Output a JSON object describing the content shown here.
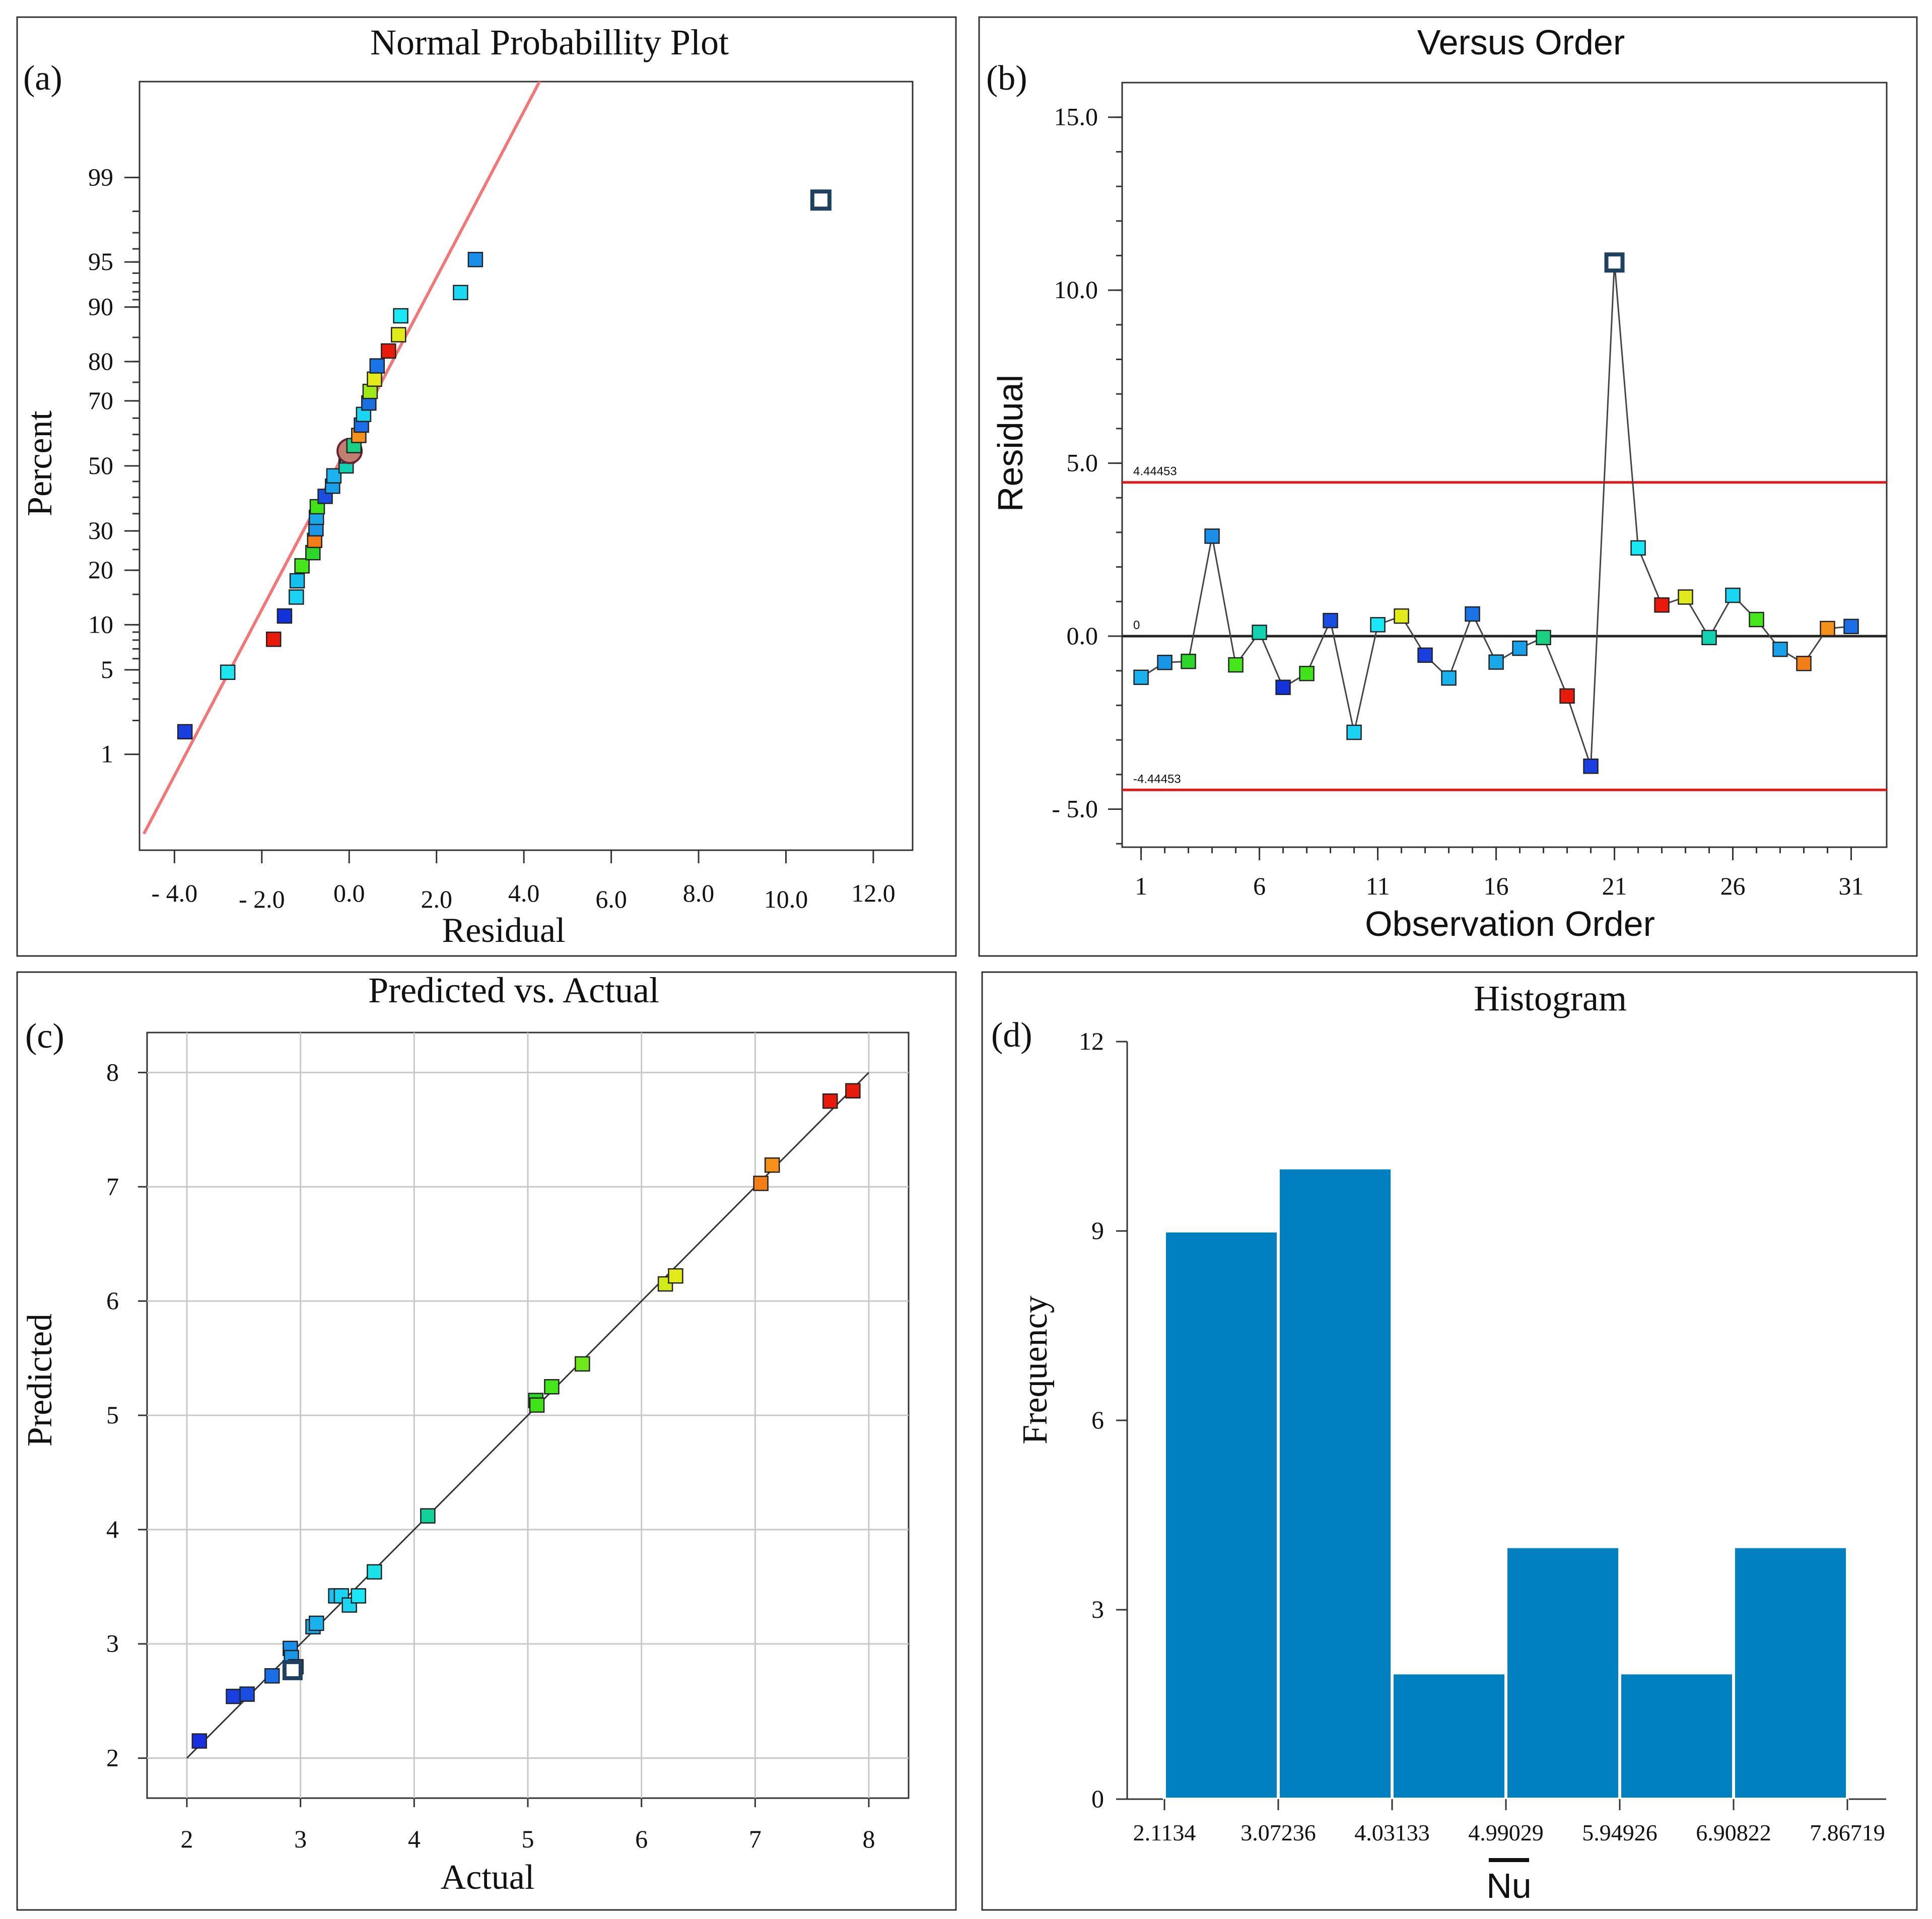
{
  "figure": {
    "panels": [
      {
        "id": "a",
        "label": "(a)",
        "title": "Normal Probabillity Plot",
        "xlabel": "Residual",
        "ylabel": "Percent"
      },
      {
        "id": "b",
        "label": "(b)",
        "title": "Versus Order",
        "xlabel": "Observation Order",
        "ylabel": "Residual"
      },
      {
        "id": "c",
        "label": "(c)",
        "title": "Predicted vs. Actual",
        "xlabel": "Actual",
        "ylabel": "Predicted"
      },
      {
        "id": "d",
        "label": "(d)",
        "title": "Histogram",
        "xlabel": "Nu",
        "ylabel": "Frequency"
      }
    ]
  },
  "chart_data": [
    {
      "id": "a",
      "type": "scatter",
      "title": "Normal Probabillity Plot",
      "xlabel": "Residual",
      "ylabel": "Percent",
      "xlim": [
        -4.8,
        12.9
      ],
      "x_ticks": [
        -4.0,
        -2.0,
        0.0,
        2.0,
        4.0,
        6.0,
        8.0,
        10.0,
        12.0
      ],
      "x_tick_labels": [
        "- 4.0",
        "- 2.0",
        "0.0",
        "2.0",
        "4.0",
        "6.0",
        "8.0",
        "10.0",
        "12.0"
      ],
      "y_ticks": [
        1,
        5,
        10,
        20,
        30,
        50,
        70,
        80,
        90,
        95,
        99
      ],
      "y_tick_labels": [
        "1",
        "5",
        "10",
        "20",
        "30",
        "50",
        "70",
        "80",
        "90",
        "95",
        "99"
      ],
      "fit_line": {
        "x": [
          -4.7,
          4.5
        ],
        "percent": [
          0.15,
          99.93
        ]
      },
      "points": [
        {
          "x": -3.76,
          "p": 1.6,
          "color": "#1a3fe0"
        },
        {
          "x": -2.78,
          "p": 4.8,
          "color": "#1ee5f0"
        },
        {
          "x": -1.73,
          "p": 8.1,
          "color": "#e81a0c"
        },
        {
          "x": -1.48,
          "p": 11.3,
          "color": "#1233d9"
        },
        {
          "x": -1.21,
          "p": 14.5,
          "color": "#1ad2f2"
        },
        {
          "x": -1.19,
          "p": 17.7,
          "color": "#14c0ee"
        },
        {
          "x": -1.08,
          "p": 21.0,
          "color": "#46e61c"
        },
        {
          "x": -0.83,
          "p": 24.2,
          "color": "#2ed52a"
        },
        {
          "x": -0.79,
          "p": 27.4,
          "color": "#f37d17"
        },
        {
          "x": -0.76,
          "p": 30.6,
          "color": "#1c96e6"
        },
        {
          "x": -0.75,
          "p": 33.9,
          "color": "#1aa8e8"
        },
        {
          "x": -0.73,
          "p": 37.1,
          "color": "#40e31a"
        },
        {
          "x": -0.55,
          "p": 40.3,
          "color": "#1a4ee0"
        },
        {
          "x": -0.38,
          "p": 43.5,
          "color": "#1aa0ea"
        },
        {
          "x": -0.35,
          "p": 46.8,
          "color": "#1ab2ee"
        },
        {
          "x": -0.07,
          "p": 50.0,
          "color": "#12d2b2"
        },
        {
          "x": -0.04,
          "p": 53.2,
          "color": "#1ac8e0"
        },
        {
          "x": 0.01,
          "p": 54.8,
          "color": "#7a5080"
        },
        {
          "x": 0.11,
          "p": 56.5,
          "color": "#1ad082"
        },
        {
          "x": 0.22,
          "p": 59.7,
          "color": "#f59018"
        },
        {
          "x": 0.28,
          "p": 62.9,
          "color": "#1a6ee8"
        },
        {
          "x": 0.33,
          "p": 66.1,
          "color": "#1ad6f2"
        },
        {
          "x": 0.45,
          "p": 69.4,
          "color": "#1a70e0"
        },
        {
          "x": 0.48,
          "p": 72.6,
          "color": "#9fe81a"
        },
        {
          "x": 0.58,
          "p": 75.8,
          "color": "#e2ea1a"
        },
        {
          "x": 0.64,
          "p": 79.0,
          "color": "#1a74e8"
        },
        {
          "x": 0.9,
          "p": 82.3,
          "color": "#e81a0c"
        },
        {
          "x": 1.13,
          "p": 85.5,
          "color": "#e0ea1a"
        },
        {
          "x": 1.18,
          "p": 88.7,
          "color": "#1ae8f5"
        },
        {
          "x": 2.55,
          "p": 91.9,
          "color": "#1ad8f2"
        },
        {
          "x": 2.89,
          "p": 95.2,
          "color": "#1a8ee8"
        },
        {
          "x": 10.8,
          "p": 98.4,
          "color": "#ffffff",
          "outlier": true
        }
      ]
    },
    {
      "id": "b",
      "type": "line",
      "title": "Versus Order",
      "xlabel": "Observation Order",
      "ylabel": "Residual",
      "xlim": [
        0.2,
        32.5
      ],
      "ylim": [
        -6.1,
        16.0
      ],
      "x_ticks": [
        1,
        6,
        11,
        16,
        21,
        26,
        31
      ],
      "x_tick_labels": [
        "1",
        "6",
        "11",
        "16",
        "21",
        "26",
        "31"
      ],
      "y_ticks": [
        -5,
        0,
        5,
        10,
        15
      ],
      "y_tick_labels": [
        "- 5.0",
        "0.0",
        "5.0",
        "10.0",
        "15.0"
      ],
      "control_limits": {
        "upper": 4.44453,
        "upper_label": "4.44453",
        "lower": -4.44453,
        "lower_label": "-4.44453",
        "center": 0,
        "center_label": "0"
      },
      "x": [
        1,
        2,
        3,
        4,
        5,
        6,
        7,
        8,
        9,
        10,
        11,
        12,
        13,
        14,
        15,
        16,
        17,
        18,
        19,
        20,
        21,
        22,
        23,
        24,
        25,
        26,
        27,
        28,
        29,
        30,
        31
      ],
      "values": [
        -1.19,
        -0.76,
        -0.73,
        2.89,
        -0.83,
        0.11,
        -1.48,
        -1.08,
        0.45,
        -2.78,
        0.33,
        0.58,
        -0.55,
        -1.21,
        0.64,
        -0.75,
        -0.35,
        -0.04,
        -1.73,
        -3.76,
        10.8,
        2.55,
        0.9,
        1.13,
        -0.04,
        1.18,
        0.48,
        -0.38,
        -0.79,
        0.22,
        0.28
      ],
      "colors": [
        "#1ab2ee",
        "#1a96e6",
        "#2ed52a",
        "#1a8ee8",
        "#46e61c",
        "#12d2b2",
        "#1233d9",
        "#40e31a",
        "#1a4ee0",
        "#1ad2f2",
        "#1ae8f5",
        "#e2ea1a",
        "#1a3fe0",
        "#1ab2ee",
        "#1a74e8",
        "#1aa8e8",
        "#1aa0ea",
        "#1ad082",
        "#e81a0c",
        "#1a3fe0",
        "#ffffff",
        "#1ae8f5",
        "#e81a0c",
        "#e0ea1a",
        "#12d2b2",
        "#1ad6f2",
        "#46e61c",
        "#1aa0ea",
        "#f37d17",
        "#f59018",
        "#1a6ee8"
      ],
      "outlier_index": 20
    },
    {
      "id": "c",
      "type": "scatter",
      "title": "Predicted vs. Actual",
      "xlabel": "Actual",
      "ylabel": "Predicted",
      "xlim": [
        1.65,
        8.35
      ],
      "ylim": [
        1.65,
        8.35
      ],
      "x_ticks": [
        2,
        3,
        4,
        5,
        6,
        7,
        8
      ],
      "y_ticks": [
        2,
        3,
        4,
        5,
        6,
        7,
        8
      ],
      "fit_line": {
        "x": [
          2,
          8
        ],
        "y": [
          2,
          8
        ]
      },
      "points": [
        {
          "x": 2.11,
          "y": 2.15,
          "color": "#1a30e0"
        },
        {
          "x": 2.41,
          "y": 2.54,
          "color": "#1a3fe0"
        },
        {
          "x": 2.53,
          "y": 2.56,
          "color": "#1a4ee0"
        },
        {
          "x": 2.75,
          "y": 2.72,
          "color": "#1a6ee8"
        },
        {
          "x": 2.91,
          "y": 2.96,
          "color": "#1a8ee8"
        },
        {
          "x": 2.92,
          "y": 2.88,
          "color": "#1a96e6"
        },
        {
          "x": 2.96,
          "y": 2.8,
          "color": "#1aa0ea"
        },
        {
          "x": 2.93,
          "y": 2.77,
          "color": "#ffffff",
          "outlier": true
        },
        {
          "x": 3.11,
          "y": 3.15,
          "color": "#1aa8e8"
        },
        {
          "x": 3.14,
          "y": 3.18,
          "color": "#1ab2ee"
        },
        {
          "x": 3.31,
          "y": 3.42,
          "color": "#1ac0ee"
        },
        {
          "x": 3.36,
          "y": 3.42,
          "color": "#1ad2f2"
        },
        {
          "x": 3.43,
          "y": 3.34,
          "color": "#1ad6f2"
        },
        {
          "x": 3.51,
          "y": 3.42,
          "color": "#1ae8f5"
        },
        {
          "x": 3.65,
          "y": 3.63,
          "color": "#1ae0e8"
        },
        {
          "x": 4.12,
          "y": 4.12,
          "color": "#12d29a"
        },
        {
          "x": 5.07,
          "y": 5.13,
          "color": "#2ed52a"
        },
        {
          "x": 5.08,
          "y": 5.09,
          "color": "#40e31a"
        },
        {
          "x": 5.21,
          "y": 5.25,
          "color": "#46e61c"
        },
        {
          "x": 5.48,
          "y": 5.45,
          "color": "#6ee81a"
        },
        {
          "x": 6.21,
          "y": 6.15,
          "color": "#d2ea1a"
        },
        {
          "x": 6.3,
          "y": 6.22,
          "color": "#e2ea1a"
        },
        {
          "x": 7.05,
          "y": 7.03,
          "color": "#f37d17"
        },
        {
          "x": 7.15,
          "y": 7.19,
          "color": "#f59018"
        },
        {
          "x": 7.66,
          "y": 7.75,
          "color": "#e81a0c"
        },
        {
          "x": 7.86,
          "y": 7.84,
          "color": "#e81a0c"
        }
      ]
    },
    {
      "id": "d",
      "type": "bar",
      "title": "Histogram",
      "xlabel": "Nu",
      "ylabel": "Frequency",
      "ylim": [
        0,
        12
      ],
      "y_ticks": [
        0,
        3,
        6,
        9,
        12
      ],
      "bin_edges": [
        2.1134,
        3.07236,
        4.03133,
        4.99029,
        5.94926,
        6.90822,
        7.86719
      ],
      "bin_edge_labels": [
        "2.1134",
        "3.07236",
        "4.03133",
        "4.99029",
        "5.94926",
        "6.90822",
        "7.86719"
      ],
      "values": [
        9,
        10,
        2,
        4,
        2,
        4
      ],
      "color": "#0080c0"
    }
  ]
}
